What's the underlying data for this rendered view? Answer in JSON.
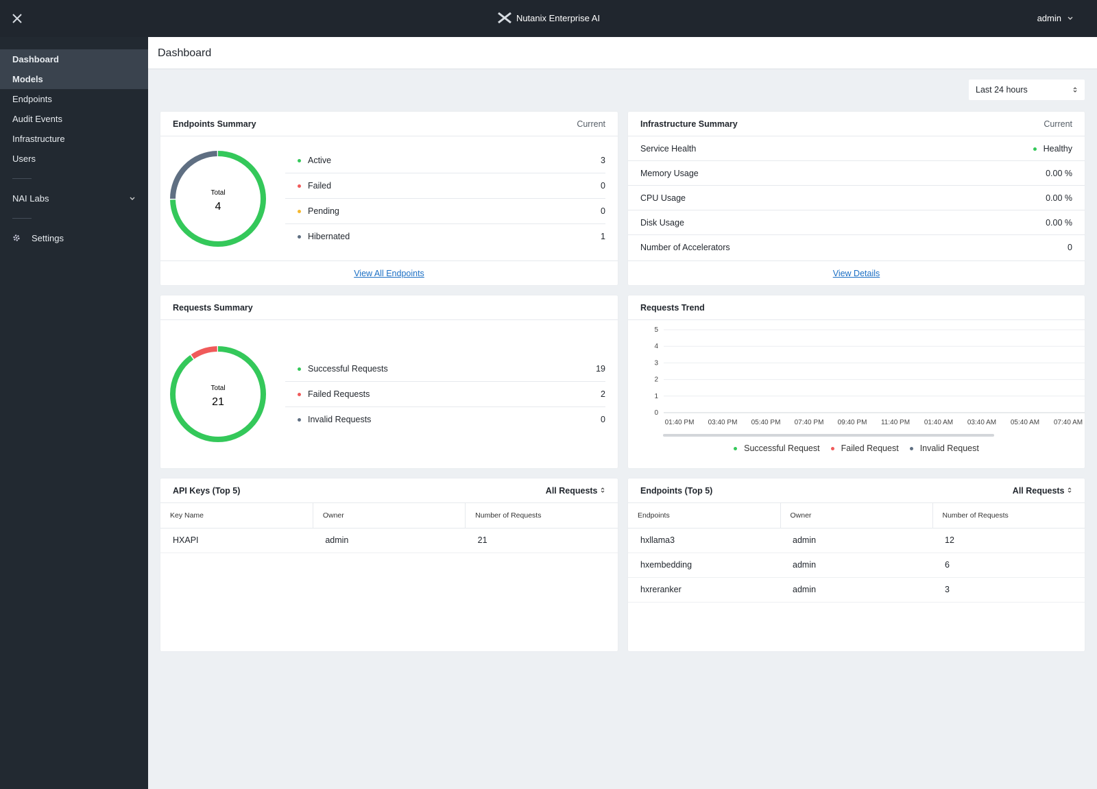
{
  "topbar": {
    "product": "Nutanix Enterprise AI",
    "user": "admin"
  },
  "sidebar": {
    "items": [
      "Dashboard",
      "Models",
      "Endpoints",
      "Audit Events",
      "Infrastructure",
      "Users"
    ],
    "group": "NAI Labs",
    "settings": "Settings"
  },
  "header": {
    "title": "Dashboard",
    "range": "Last 24 hours"
  },
  "endpoints_summary": {
    "title": "Endpoints Summary",
    "status": "Current",
    "total_label": "Total",
    "total": 4,
    "rows": [
      {
        "label": "Active",
        "value": 3,
        "color": "#34c85a"
      },
      {
        "label": "Failed",
        "value": 0,
        "color": "#f05a5a"
      },
      {
        "label": "Pending",
        "value": 0,
        "color": "#f5b82e"
      },
      {
        "label": "Hibernated",
        "value": 1,
        "color": "#5f6f82"
      }
    ],
    "link": "View All Endpoints"
  },
  "infrastructure_summary": {
    "title": "Infrastructure Summary",
    "status": "Current",
    "rows": [
      {
        "label": "Service Health",
        "value": "Healthy",
        "color": "#34c85a"
      },
      {
        "label": "Memory Usage",
        "value": "0.00 %"
      },
      {
        "label": "CPU Usage",
        "value": "0.00 %"
      },
      {
        "label": "Disk Usage",
        "value": "0.00 %"
      },
      {
        "label": "Number of Accelerators",
        "value": 0
      }
    ],
    "link": "View Details"
  },
  "requests_summary": {
    "title": "Requests Summary",
    "total_label": "Total",
    "total": 21,
    "rows": [
      {
        "label": "Successful Requests",
        "value": 19,
        "color": "#34c85a"
      },
      {
        "label": "Failed Requests",
        "value": 2,
        "color": "#f05a5a"
      },
      {
        "label": "Invalid Requests",
        "value": 0,
        "color": "#5f6f82"
      }
    ]
  },
  "requests_trend": {
    "title": "Requests Trend",
    "ylim": [
      0,
      5
    ],
    "yticks": [
      0,
      1,
      2,
      3,
      4,
      5
    ],
    "categories": [
      "01:40 PM",
      "03:40 PM",
      "05:40 PM",
      "07:40 PM",
      "09:40 PM",
      "11:40 PM",
      "01:40 AM",
      "03:40 AM",
      "05:40 AM",
      "07:40 AM"
    ],
    "legend": [
      {
        "name": "Successful Request",
        "color": "#34c85a"
      },
      {
        "name": "Failed Request",
        "color": "#f05a5a"
      },
      {
        "name": "Invalid Request",
        "color": "#5f6f82"
      }
    ]
  },
  "api_keys": {
    "title": "API Keys (Top 5)",
    "filter": "All Requests",
    "columns": [
      "Key Name",
      "Owner",
      "Number of Requests"
    ],
    "rows": [
      [
        "HXAPI",
        "admin",
        21
      ]
    ]
  },
  "endpoints_top": {
    "title": "Endpoints (Top 5)",
    "filter": "All Requests",
    "columns": [
      "Endpoints",
      "Owner",
      "Number of Requests"
    ],
    "rows": [
      [
        "hxllama3",
        "admin",
        12
      ],
      [
        "hxembedding",
        "admin",
        6
      ],
      [
        "hxreranker",
        "admin",
        3
      ]
    ]
  }
}
